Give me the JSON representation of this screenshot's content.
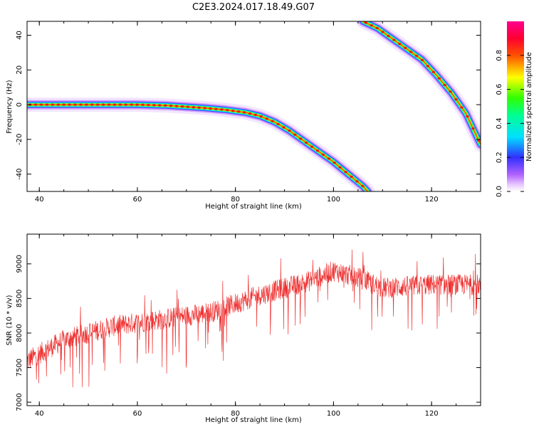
{
  "figure_title": "C2E3.2024.017.18.49.G07",
  "chart_data": [
    {
      "type": "heatmap",
      "xlabel": "Height of straight line (km)",
      "ylabel": "Frequency (Hz)",
      "xlim": [
        37.5,
        130
      ],
      "ylim": [
        -50,
        48
      ],
      "x_ticks": [
        40,
        60,
        80,
        100,
        120
      ],
      "y_ticks": [
        40,
        20,
        0,
        -20,
        -40
      ],
      "colorbar": {
        "label": "Normalized spectral amplitude",
        "range": [
          0,
          1
        ],
        "ticks": [
          "0.0",
          "0.2",
          "0.4",
          "0.6",
          "0.8"
        ],
        "colormap": "rainbow (white/violet → blue → cyan → green → yellow → red → magenta)"
      },
      "traces": [
        {
          "name": "",
          "points": [
            [
              37.5,
              0
            ],
            [
              60,
              0
            ],
            [
              66,
              -0.5
            ],
            [
              70,
              -1.2
            ],
            [
              74,
              -2
            ],
            [
              78,
              -3
            ],
            [
              82,
              -4.5
            ],
            [
              85,
              -6.5
            ],
            [
              88,
              -10
            ],
            [
              91,
              -15
            ],
            [
              94,
              -21
            ],
            [
              97,
              -27
            ],
            [
              100,
              -33
            ],
            [
              103,
              -40
            ],
            [
              106,
              -47
            ],
            [
              107,
              -50
            ]
          ]
        },
        {
          "name": "",
          "points": [
            [
              106,
              48
            ],
            [
              109,
              44
            ],
            [
              112,
              38
            ],
            [
              115,
              32
            ],
            [
              118,
              26
            ],
            [
              121,
              17
            ],
            [
              124,
              7
            ],
            [
              127,
              -5
            ],
            [
              130,
              -23
            ]
          ]
        }
      ]
    },
    {
      "type": "line",
      "xlabel": "Height of straight line (km)",
      "ylabel": "SNR (10 * v/v)",
      "xlim": [
        37.5,
        130
      ],
      "ylim": [
        6950,
        9430
      ],
      "x_ticks": [
        40,
        60,
        80,
        100,
        120
      ],
      "y_ticks": [
        7000,
        7500,
        8000,
        8500,
        9000
      ],
      "series": [
        {
          "name": "",
          "color": "#ee3333",
          "trend": [
            [
              37.5,
              7600
            ],
            [
              45,
              7900
            ],
            [
              55,
              8100
            ],
            [
              65,
              8200
            ],
            [
              75,
              8300
            ],
            [
              85,
              8550
            ],
            [
              95,
              8750
            ],
            [
              100,
              8900
            ],
            [
              105,
              8800
            ],
            [
              110,
              8650
            ],
            [
              120,
              8700
            ],
            [
              130,
              8700
            ]
          ]
        }
      ]
    }
  ]
}
